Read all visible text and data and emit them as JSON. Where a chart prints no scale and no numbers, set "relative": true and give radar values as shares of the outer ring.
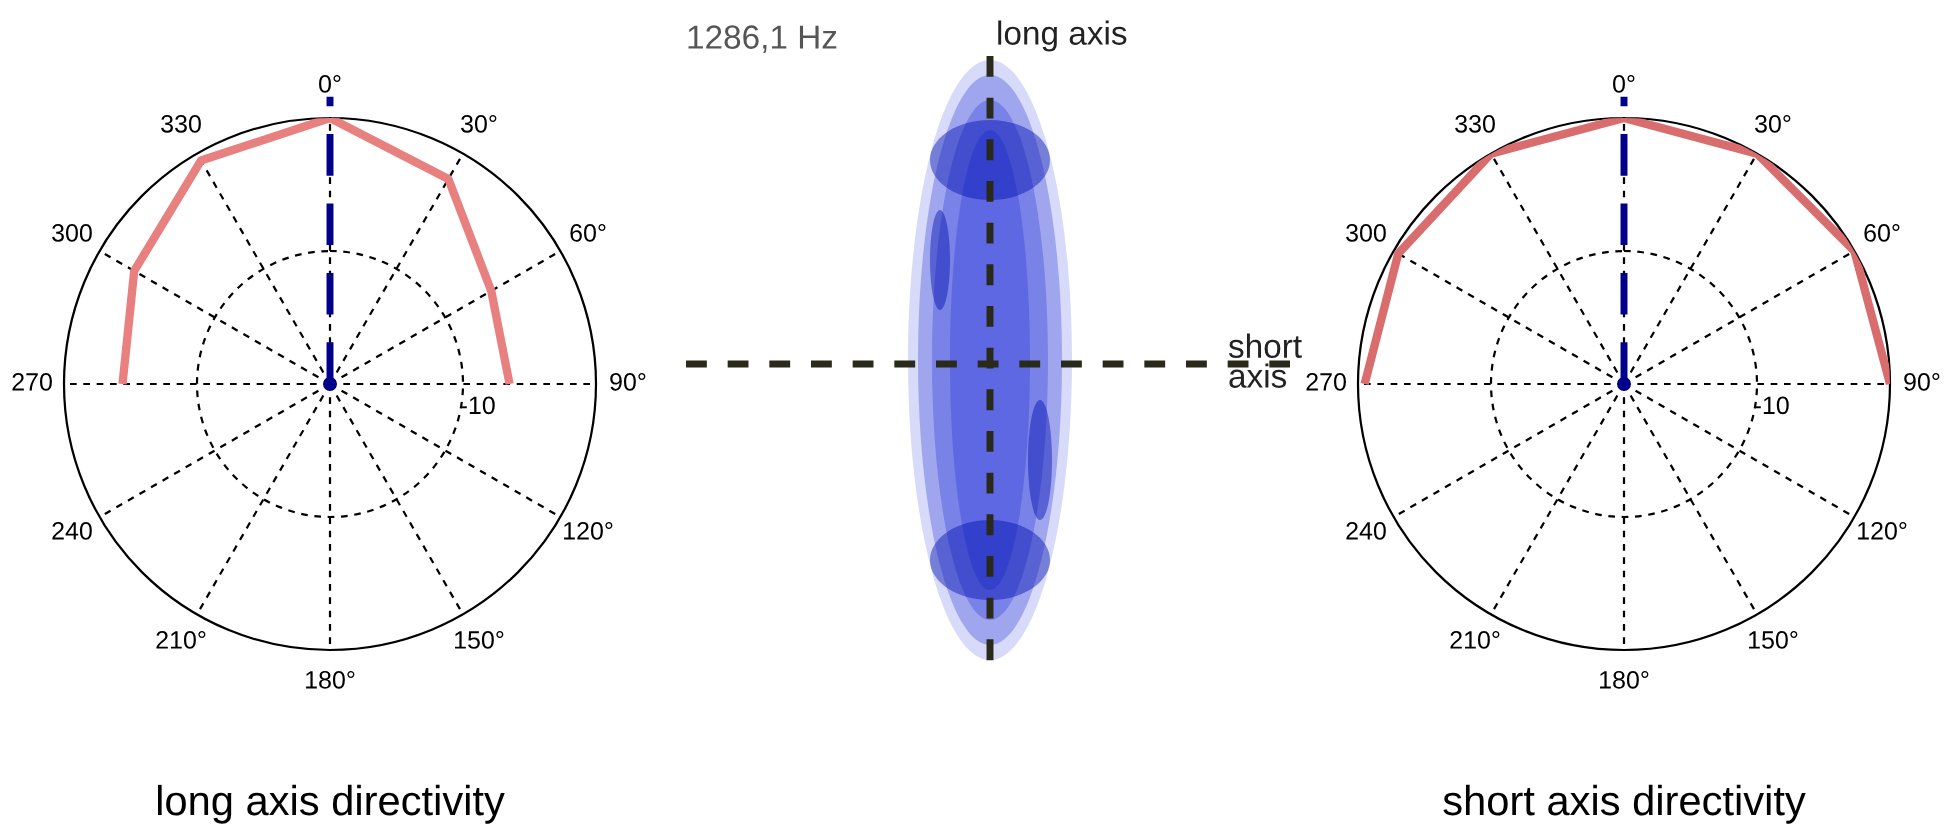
{
  "chart_data": [
    {
      "type": "radar",
      "title": "long axis directivity",
      "relative": true,
      "grid": true,
      "categories": [
        "0°",
        "30°",
        "60°",
        "90°",
        "120°",
        "150°",
        "180°",
        "210°",
        "240",
        "270",
        "300",
        "330"
      ],
      "series": [
        {
          "color": "#e88080",
          "values": [
            1.0,
            0.89,
            0.7,
            0.675,
            null,
            null,
            null,
            null,
            null,
            0.78,
            0.85,
            0.97
          ]
        }
      ],
      "annotations": [
        "-10"
      ]
    },
    {
      "type": "other",
      "annotations": [
        "1286,1 Hz",
        "long axis",
        "short\naxis"
      ]
    },
    {
      "type": "radar",
      "title": "short axis directivity",
      "relative": true,
      "grid": true,
      "categories": [
        "0°",
        "30°",
        "60°",
        "90°",
        "120°",
        "150°",
        "180°",
        "210°",
        "240",
        "270",
        "300",
        "330"
      ],
      "series": [
        {
          "color": "#d96c6c",
          "values": [
            1.0,
            1.0,
            1.0,
            1.0,
            null,
            null,
            null,
            null,
            null,
            0.975,
            0.98,
            1.0
          ]
        }
      ],
      "annotations": [
        "-10"
      ]
    }
  ]
}
